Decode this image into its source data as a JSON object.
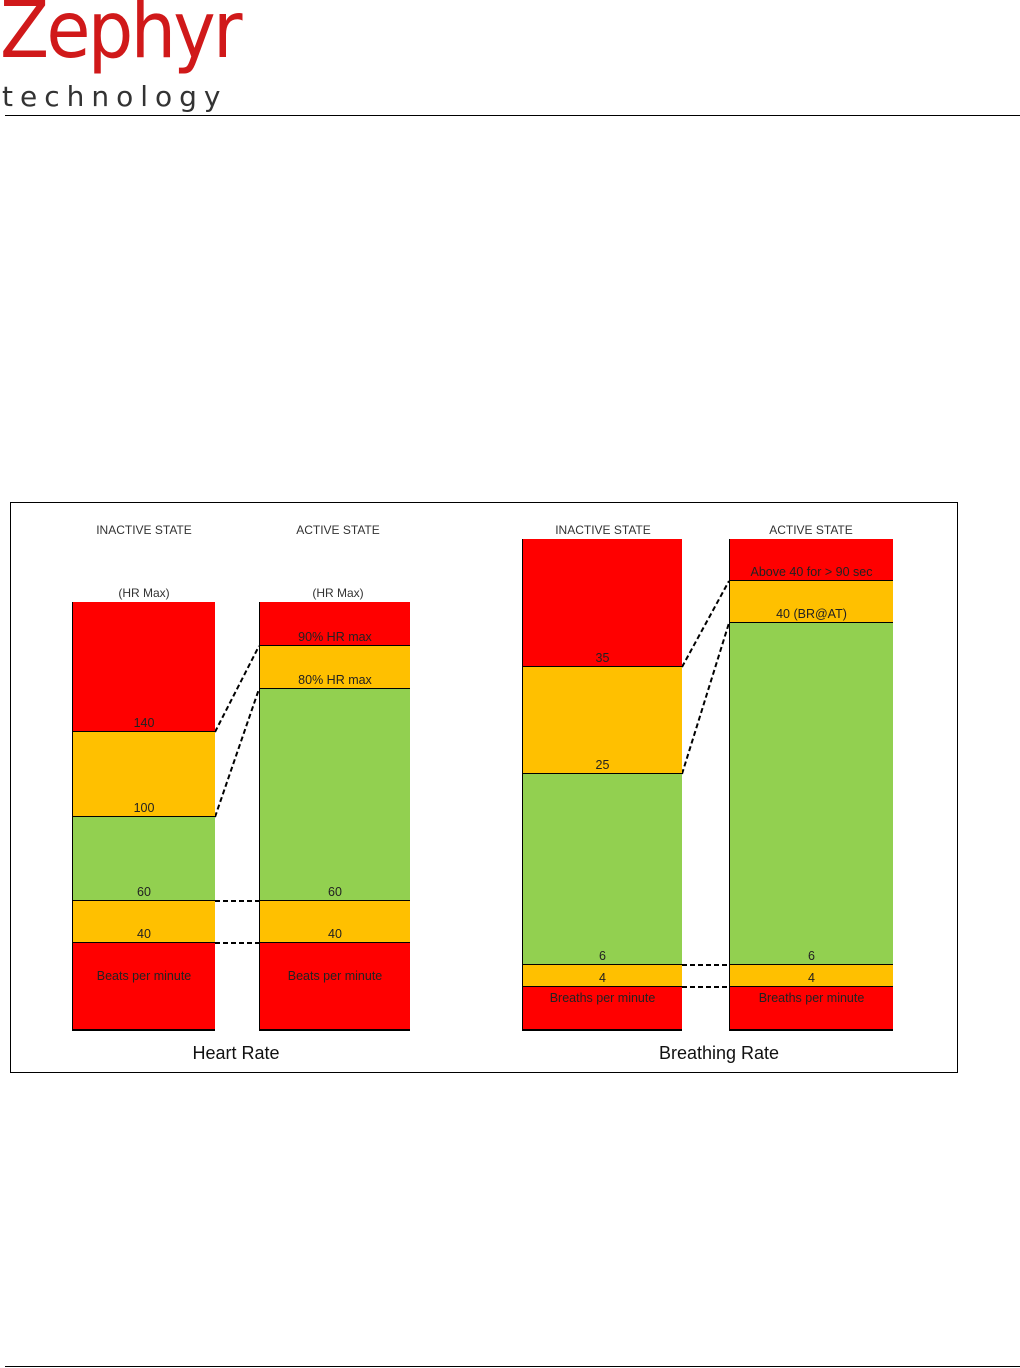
{
  "header": {
    "logo_main": "Zephyr",
    "logo_sub": "technology"
  },
  "figure": {
    "heart_rate": {
      "title": "Heart Rate",
      "inactive": {
        "heading": "INACTIVE STATE",
        "subheading": "(HR Max)",
        "bands": [
          {
            "label": "140",
            "color": "#ff0000"
          },
          {
            "label": "100",
            "color": "#ffc000"
          },
          {
            "label": "60",
            "color": "#92d050"
          },
          {
            "label": "40",
            "color": "#ffc000"
          },
          {
            "label": "Beats per minute",
            "color": "#ff0000"
          }
        ]
      },
      "active": {
        "heading": "ACTIVE STATE",
        "subheading": "(HR Max)",
        "bands": [
          {
            "label": "90% HR max",
            "color": "#ff0000"
          },
          {
            "label": "80% HR max",
            "color": "#ffc000"
          },
          {
            "label": "60",
            "color": "#92d050"
          },
          {
            "label": "40",
            "color": "#ffc000"
          },
          {
            "label": "Beats per minute",
            "color": "#ff0000"
          }
        ]
      }
    },
    "breathing_rate": {
      "title": "Breathing Rate",
      "inactive": {
        "heading": "INACTIVE STATE",
        "bands": [
          {
            "label": "35",
            "color": "#ff0000"
          },
          {
            "label": "25",
            "color": "#ffc000"
          },
          {
            "label": "6",
            "color": "#92d050"
          },
          {
            "label": "4",
            "color": "#ffc000"
          },
          {
            "label": "Breaths per minute",
            "color": "#ff0000"
          }
        ]
      },
      "active": {
        "heading": "ACTIVE STATE",
        "bands": [
          {
            "label": "Above 40 for > 90 sec",
            "color": "#ff0000"
          },
          {
            "label": "40 (BR@AT)",
            "color": "#ffc000"
          },
          {
            "label": "6",
            "color": "#92d050"
          },
          {
            "label": "4",
            "color": "#ffc000"
          },
          {
            "label": "Breaths per minute",
            "color": "#ff0000"
          }
        ]
      }
    }
  }
}
